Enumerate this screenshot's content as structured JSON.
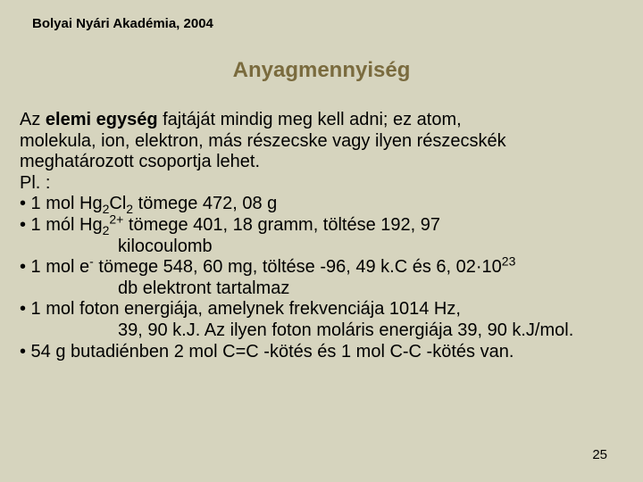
{
  "header": "Bolyai Nyári Akadémia, 2004",
  "title": "Anyagmennyiség",
  "para": {
    "l1a": "Az ",
    "l1b": "elemi egység",
    "l1c": " fajtáját mindig meg kell adni; ez atom,",
    "l2": "molekula, ion, elektron, más részecske vagy ilyen részecskék",
    "l3": "meghatározott csoportja lehet.",
    "l4": "Pl. :"
  },
  "b1": {
    "a": "• 1 mol Hg",
    "s1": "2",
    "b": "Cl",
    "s2": "2",
    "c": " tömege 472, 08 g"
  },
  "b2": {
    "a": "• 1 mól Hg",
    "s1": "2",
    "sup": "2+",
    "b": " tömege 401, 18 gramm, töltése 192, 97",
    "cont": "kilocoulomb"
  },
  "b3": {
    "a": "• 1 mol e",
    "sup": "-",
    "b": " tömege 548, 60 ",
    "mu": "m",
    "c": "g, töltése -96, 49 k.C és 6, 02·10",
    "sup2": "23",
    "cont": "db elektront tartalmaz"
  },
  "b4": {
    "a": "• 1 mol foton energiája, amelynek frekvenciája 1014 Hz,",
    "cont": "39, 90 k.J. Az ilyen foton moláris energiája 39, 90 k.J/mol."
  },
  "b5": {
    "a": "• 54 g butadiénben 2 mol C=C -kötés és 1 mol C-C -kötés van."
  },
  "page": "25"
}
